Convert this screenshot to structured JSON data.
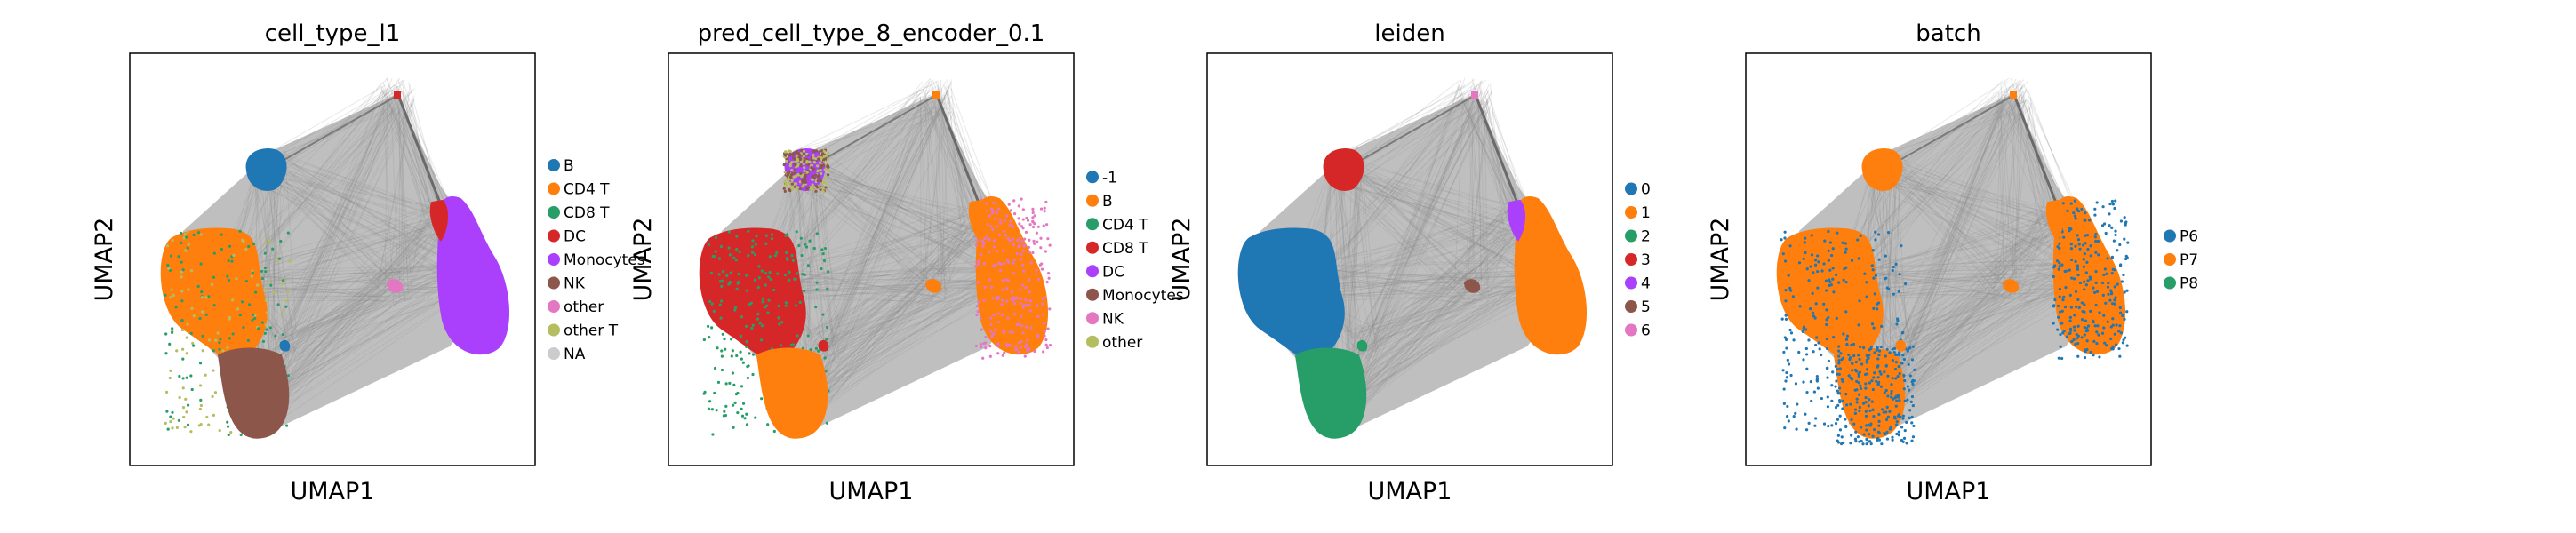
{
  "figure": {
    "panels": [
      {
        "title": "cell_type_l1",
        "xlabel": "UMAP1",
        "ylabel": "UMAP2",
        "legend": [
          {
            "label": "B",
            "color": "#1f77b4"
          },
          {
            "label": "CD4 T",
            "color": "#ff7f0e"
          },
          {
            "label": "CD8 T",
            "color": "#279e68"
          },
          {
            "label": "DC",
            "color": "#d62728"
          },
          {
            "label": "Monocytes",
            "color": "#aa40fc"
          },
          {
            "label": "NK",
            "color": "#8c564b"
          },
          {
            "label": "other",
            "color": "#e377c2"
          },
          {
            "label": "other T",
            "color": "#b5bd61"
          },
          {
            "label": "NA",
            "color": "#cccccc"
          }
        ]
      },
      {
        "title": "pred_cell_type_8_encoder_0.1",
        "xlabel": "UMAP1",
        "ylabel": "UMAP2",
        "legend": [
          {
            "label": "-1",
            "color": "#1f77b4"
          },
          {
            "label": "B",
            "color": "#ff7f0e"
          },
          {
            "label": "CD4 T",
            "color": "#279e68"
          },
          {
            "label": "CD8 T",
            "color": "#d62728"
          },
          {
            "label": "DC",
            "color": "#aa40fc"
          },
          {
            "label": "Monocytes",
            "color": "#8c564b"
          },
          {
            "label": "NK",
            "color": "#e377c2"
          },
          {
            "label": "other",
            "color": "#b5bd61"
          }
        ]
      },
      {
        "title": "leiden",
        "xlabel": "UMAP1",
        "ylabel": "UMAP2",
        "legend": [
          {
            "label": "0",
            "color": "#1f77b4"
          },
          {
            "label": "1",
            "color": "#ff7f0e"
          },
          {
            "label": "2",
            "color": "#279e68"
          },
          {
            "label": "3",
            "color": "#d62728"
          },
          {
            "label": "4",
            "color": "#aa40fc"
          },
          {
            "label": "5",
            "color": "#8c564b"
          },
          {
            "label": "6",
            "color": "#e377c2"
          }
        ]
      },
      {
        "title": "batch",
        "xlabel": "UMAP1",
        "ylabel": "UMAP2",
        "legend": [
          {
            "label": "P6",
            "color": "#1f77b4"
          },
          {
            "label": "P7",
            "color": "#ff7f0e"
          },
          {
            "label": "P8",
            "color": "#279e68"
          }
        ]
      }
    ]
  },
  "chart_data": [
    {
      "type": "scatter",
      "title": "cell_type_l1",
      "xlabel": "UMAP1",
      "ylabel": "UMAP2",
      "axis_ticks": "none",
      "grid": false,
      "legend_placement": "right",
      "edges": "gray PAGA connectivity lines between cluster centroids",
      "series": [
        {
          "name": "B",
          "color": "#1f77b4",
          "cluster": "top-center"
        },
        {
          "name": "CD4 T",
          "color": "#ff7f0e",
          "cluster": "left"
        },
        {
          "name": "CD8 T",
          "color": "#279e68",
          "cluster": "left-lower"
        },
        {
          "name": "DC",
          "color": "#d62728",
          "cluster": "right-top"
        },
        {
          "name": "Monocytes",
          "color": "#aa40fc",
          "cluster": "right"
        },
        {
          "name": "NK",
          "color": "#8c564b",
          "cluster": "bottom"
        },
        {
          "name": "other",
          "color": "#e377c2",
          "cluster": "center"
        },
        {
          "name": "other T",
          "color": "#b5bd61",
          "cluster": "left"
        },
        {
          "name": "NA",
          "color": "#cccccc",
          "cluster": "none"
        }
      ]
    },
    {
      "type": "scatter",
      "title": "pred_cell_type_8_encoder_0.1",
      "xlabel": "UMAP1",
      "ylabel": "UMAP2",
      "axis_ticks": "none",
      "grid": false,
      "legend_placement": "right",
      "series": [
        {
          "name": "-1",
          "color": "#1f77b4",
          "cluster": "none"
        },
        {
          "name": "B",
          "color": "#ff7f0e",
          "cluster": "right, bottom, center"
        },
        {
          "name": "CD4 T",
          "color": "#279e68",
          "cluster": "scattered"
        },
        {
          "name": "CD8 T",
          "color": "#d62728",
          "cluster": "left"
        },
        {
          "name": "DC",
          "color": "#aa40fc",
          "cluster": "top-center"
        },
        {
          "name": "Monocytes",
          "color": "#8c564b",
          "cluster": "top-center"
        },
        {
          "name": "NK",
          "color": "#e377c2",
          "cluster": "right edge"
        },
        {
          "name": "other",
          "color": "#b5bd61",
          "cluster": "top-center"
        }
      ]
    },
    {
      "type": "scatter",
      "title": "leiden",
      "xlabel": "UMAP1",
      "ylabel": "UMAP2",
      "axis_ticks": "none",
      "grid": false,
      "legend_placement": "right",
      "series": [
        {
          "name": "0",
          "color": "#1f77b4",
          "cluster": "left"
        },
        {
          "name": "1",
          "color": "#ff7f0e",
          "cluster": "right"
        },
        {
          "name": "2",
          "color": "#279e68",
          "cluster": "left-lower"
        },
        {
          "name": "3",
          "color": "#d62728",
          "cluster": "top-center"
        },
        {
          "name": "4",
          "color": "#aa40fc",
          "cluster": "right-top"
        },
        {
          "name": "5",
          "color": "#8c564b",
          "cluster": "center"
        },
        {
          "name": "6",
          "color": "#e377c2",
          "cluster": "top apex"
        }
      ]
    },
    {
      "type": "scatter",
      "title": "batch",
      "xlabel": "UMAP1",
      "ylabel": "UMAP2",
      "axis_ticks": "none",
      "grid": false,
      "legend_placement": "right",
      "series": [
        {
          "name": "P6",
          "color": "#1f77b4",
          "cluster": "cluster edges"
        },
        {
          "name": "P7",
          "color": "#ff7f0e",
          "cluster": "all clusters"
        },
        {
          "name": "P8",
          "color": "#279e68",
          "cluster": "sparse"
        }
      ]
    }
  ]
}
